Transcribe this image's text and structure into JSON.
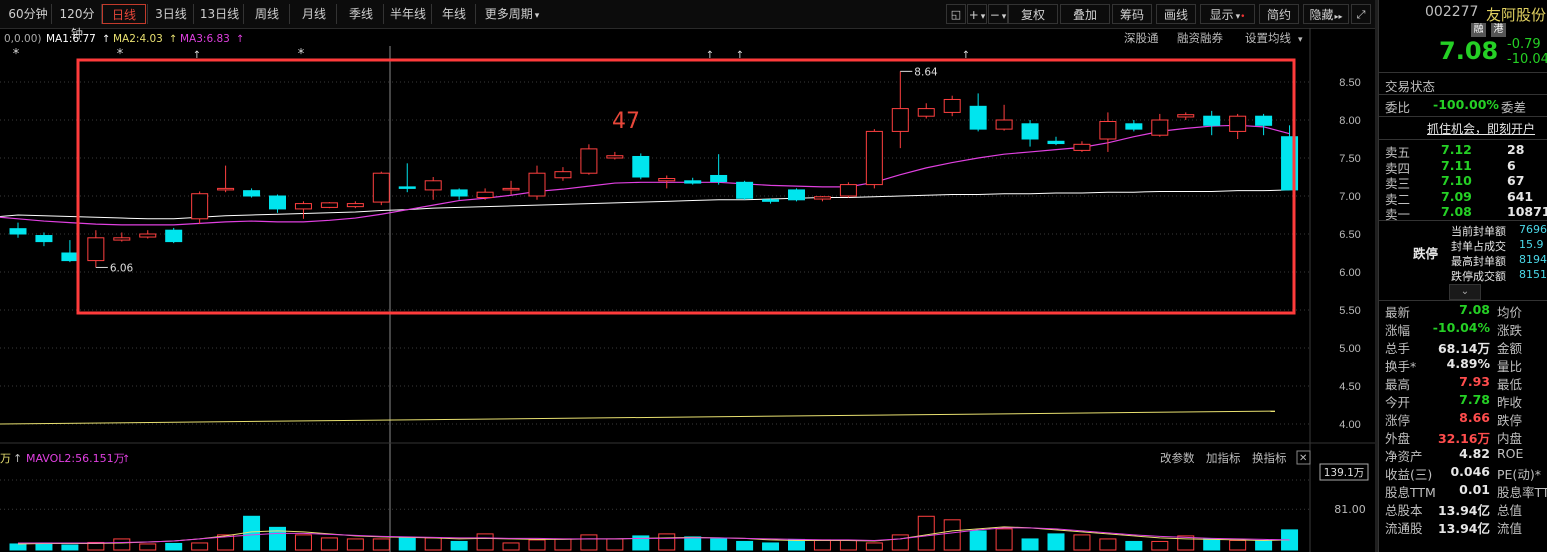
{
  "toolbar": {
    "periods": [
      "60分钟",
      "120分钟",
      "日线",
      "3日线",
      "13日线",
      "周线",
      "月线",
      "季线",
      "半年线",
      "年线",
      "更多周期"
    ],
    "selected": "日线",
    "more_arrow": "▾",
    "right_tools": [
      "+",
      "−",
      "复权",
      "叠加",
      "筹码",
      "画线",
      "显示",
      "简约",
      "隐藏"
    ],
    "right_arrows": [
      "▾",
      "▾",
      "",
      "",
      "",
      "",
      "▾",
      "",
      ""
    ],
    "lock_icon": "lock-icon",
    "expand_icon": "expand-icon",
    "hide_arrow": "▸▸"
  },
  "ma_legend": {
    "prefix": "0,0.00)",
    "ma1": "MA1:6.77",
    "ma2": "MA2:4.03",
    "ma3": "MA3:6.83",
    "ma1_color": "#ffffff",
    "ma2_color": "#e8e070",
    "ma3_color": "#e040e0"
  },
  "chart_links": [
    "深股通",
    "融资融券",
    "设置均线"
  ],
  "annotation_number": "47",
  "volume_legend": {
    "prefix": "万",
    "mavol2": "MAVOL2:56.151万",
    "links": [
      "改参数",
      "加指标",
      "换指标"
    ],
    "close": "✕"
  },
  "price_axis": [
    "8.50",
    "8.00",
    "7.50",
    "7.00",
    "6.50",
    "6.00",
    "5.50",
    "5.00",
    "4.50",
    "4.00"
  ],
  "volume_axis": [
    "139.1万",
    "81.00"
  ],
  "high_label": "8.64",
  "low_label": "6.06",
  "colors": {
    "up": "#ff4040",
    "down": "#00e5ee",
    "box": "#ff3b3b",
    "ma3": "#e040e0",
    "ma1": "#ffffff",
    "ma2": "#e8e070"
  },
  "chart_data": {
    "type": "candlestick",
    "ylim": [
      3.9,
      8.75
    ],
    "candles": [
      {
        "o": 6.57,
        "c": 6.5,
        "h": 6.65,
        "l": 6.45
      },
      {
        "o": 6.48,
        "c": 6.4,
        "h": 6.52,
        "l": 6.34
      },
      {
        "o": 6.25,
        "c": 6.15,
        "h": 6.42,
        "l": 6.13
      },
      {
        "o": 6.15,
        "c": 6.45,
        "h": 6.55,
        "l": 6.06
      },
      {
        "o": 6.42,
        "c": 6.45,
        "h": 6.52,
        "l": 6.4
      },
      {
        "o": 6.46,
        "c": 6.5,
        "h": 6.55,
        "l": 6.44
      },
      {
        "o": 6.55,
        "c": 6.4,
        "h": 6.58,
        "l": 6.38
      },
      {
        "o": 6.7,
        "c": 7.03,
        "h": 7.06,
        "l": 6.63
      },
      {
        "o": 7.08,
        "c": 7.1,
        "h": 7.4,
        "l": 7.05
      },
      {
        "o": 7.07,
        "c": 7.0,
        "h": 7.1,
        "l": 6.98
      },
      {
        "o": 7.0,
        "c": 6.83,
        "h": 7.02,
        "l": 6.78
      },
      {
        "o": 6.83,
        "c": 6.9,
        "h": 6.93,
        "l": 6.7
      },
      {
        "o": 6.85,
        "c": 6.91,
        "h": 6.92,
        "l": 6.84
      },
      {
        "o": 6.86,
        "c": 6.9,
        "h": 6.93,
        "l": 6.84
      },
      {
        "o": 6.92,
        "c": 7.3,
        "h": 7.32,
        "l": 6.88
      },
      {
        "o": 7.12,
        "c": 7.1,
        "h": 7.43,
        "l": 7.05
      },
      {
        "o": 7.08,
        "c": 7.2,
        "h": 7.25,
        "l": 6.95
      },
      {
        "o": 7.08,
        "c": 7.0,
        "h": 7.1,
        "l": 6.95
      },
      {
        "o": 6.98,
        "c": 7.05,
        "h": 7.1,
        "l": 6.95
      },
      {
        "o": 7.08,
        "c": 7.1,
        "h": 7.2,
        "l": 7.02
      },
      {
        "o": 7.0,
        "c": 7.3,
        "h": 7.4,
        "l": 6.95
      },
      {
        "o": 7.24,
        "c": 7.32,
        "h": 7.38,
        "l": 7.2
      },
      {
        "o": 7.3,
        "c": 7.62,
        "h": 7.68,
        "l": 7.28
      },
      {
        "o": 7.5,
        "c": 7.53,
        "h": 7.58,
        "l": 7.48
      },
      {
        "o": 7.52,
        "c": 7.25,
        "h": 7.56,
        "l": 7.22
      },
      {
        "o": 7.2,
        "c": 7.23,
        "h": 7.27,
        "l": 7.1
      },
      {
        "o": 7.2,
        "c": 7.17,
        "h": 7.24,
        "l": 7.15
      },
      {
        "o": 7.27,
        "c": 7.19,
        "h": 7.55,
        "l": 7.15
      },
      {
        "o": 7.18,
        "c": 6.97,
        "h": 7.2,
        "l": 6.95
      },
      {
        "o": 6.95,
        "c": 6.93,
        "h": 6.97,
        "l": 6.9
      },
      {
        "o": 7.08,
        "c": 6.95,
        "h": 7.1,
        "l": 6.93
      },
      {
        "o": 6.96,
        "c": 6.99,
        "h": 7.0,
        "l": 6.93
      },
      {
        "o": 7.0,
        "c": 7.15,
        "h": 7.18,
        "l": 6.98
      },
      {
        "o": 7.15,
        "c": 7.85,
        "h": 7.88,
        "l": 7.1
      },
      {
        "o": 7.85,
        "c": 8.15,
        "h": 8.64,
        "l": 7.63
      },
      {
        "o": 8.05,
        "c": 8.15,
        "h": 8.22,
        "l": 8.02
      },
      {
        "o": 8.1,
        "c": 8.27,
        "h": 8.32,
        "l": 8.05
      },
      {
        "o": 8.18,
        "c": 7.88,
        "h": 8.35,
        "l": 7.85
      },
      {
        "o": 7.88,
        "c": 8.0,
        "h": 8.2,
        "l": 7.86
      },
      {
        "o": 7.95,
        "c": 7.75,
        "h": 8.0,
        "l": 7.65
      },
      {
        "o": 7.72,
        "c": 7.69,
        "h": 7.78,
        "l": 7.67
      },
      {
        "o": 7.6,
        "c": 7.68,
        "h": 7.72,
        "l": 7.58
      },
      {
        "o": 7.75,
        "c": 7.98,
        "h": 8.1,
        "l": 7.58
      },
      {
        "o": 7.95,
        "c": 7.88,
        "h": 8.0,
        "l": 7.85
      },
      {
        "o": 7.8,
        "c": 8.0,
        "h": 8.08,
        "l": 7.78
      },
      {
        "o": 8.04,
        "c": 8.07,
        "h": 8.1,
        "l": 8.0
      },
      {
        "o": 8.05,
        "c": 7.93,
        "h": 8.12,
        "l": 7.8
      },
      {
        "o": 7.85,
        "c": 8.05,
        "h": 8.08,
        "l": 7.75
      },
      {
        "o": 8.05,
        "c": 7.93,
        "h": 8.08,
        "l": 7.8
      },
      {
        "o": 7.78,
        "c": 7.08,
        "h": 7.93,
        "l": 7.08
      }
    ],
    "ma3": [
      6.7,
      6.67,
      6.65,
      6.63,
      6.62,
      6.62,
      6.62,
      6.64,
      6.66,
      6.67,
      6.66,
      6.66,
      6.68,
      6.71,
      6.76,
      6.82,
      6.88,
      6.94,
      6.97,
      7.01,
      7.06,
      7.09,
      7.13,
      7.17,
      7.18,
      7.18,
      7.18,
      7.18,
      7.16,
      7.14,
      7.13,
      7.12,
      7.12,
      7.18,
      7.28,
      7.37,
      7.44,
      7.5,
      7.55,
      7.58,
      7.61,
      7.64,
      7.7,
      7.78,
      7.85,
      7.89,
      7.92,
      7.93,
      7.91,
      7.82
    ],
    "ma1": [
      6.75,
      6.74,
      6.73,
      6.72,
      6.71,
      6.7,
      6.7,
      6.72,
      6.74,
      6.75,
      6.76,
      6.77,
      6.78,
      6.79,
      6.81,
      6.82,
      6.84,
      6.85,
      6.86,
      6.87,
      6.88,
      6.89,
      6.9,
      6.91,
      6.92,
      6.93,
      6.94,
      6.95,
      6.95,
      6.96,
      6.97,
      6.98,
      6.98,
      6.99,
      7.0,
      7.01,
      7.02,
      7.02,
      7.03,
      7.03,
      7.04,
      7.04,
      7.05,
      7.05,
      7.06,
      7.06,
      7.06,
      7.07,
      7.07,
      7.08
    ],
    "ma2_range": [
      4.0,
      4.17
    ],
    "volume": [
      12,
      14,
      10,
      15,
      22,
      12,
      13,
      14,
      30,
      67,
      45,
      30,
      24,
      22,
      22,
      24,
      24,
      17,
      32,
      14,
      20,
      22,
      30,
      22,
      28,
      32,
      26,
      22,
      17,
      14,
      21,
      20,
      19,
      14,
      30,
      67,
      60,
      38,
      42,
      22,
      32,
      30,
      22,
      17,
      17,
      28,
      22,
      19,
      18,
      40
    ],
    "volume_max": 139.1,
    "volume_ma": [
      12,
      13,
      13,
      13,
      14,
      16,
      18,
      22,
      28,
      36,
      38,
      36,
      32,
      28,
      26,
      25,
      24,
      22,
      23,
      22,
      21,
      21,
      22,
      22,
      23,
      24,
      25,
      24,
      23,
      20,
      19,
      19,
      19,
      18,
      22,
      30,
      38,
      42,
      46,
      44,
      40,
      36,
      32,
      28,
      24,
      22,
      21,
      20,
      19,
      20
    ],
    "volume_ma2": [
      14,
      14,
      14,
      14,
      15,
      16,
      18,
      22,
      26,
      30,
      33,
      33,
      31,
      29,
      27,
      26,
      25,
      24,
      24,
      23,
      23,
      22,
      22,
      22,
      23,
      23,
      24,
      24,
      23,
      22,
      21,
      20,
      20,
      19,
      22,
      28,
      34,
      40,
      44,
      44,
      42,
      38,
      34,
      30,
      27,
      25,
      23,
      22,
      21,
      20
    ]
  },
  "stock": {
    "code": "002277",
    "name": "友阿股份",
    "badges": [
      "融",
      "港"
    ],
    "price": "7.08",
    "change": "-0.79",
    "change_pct": "-10.04",
    "section_trade": "交易状态",
    "weibi_label": "委比",
    "weibi_value": "-100.00%",
    "weicha_label": "委差",
    "promo": "抓住机会，即刻开户",
    "sell_rows": [
      {
        "label": "卖五",
        "price": "7.12",
        "vol": "28"
      },
      {
        "label": "卖四",
        "price": "7.11",
        "vol": "6"
      },
      {
        "label": "卖三",
        "price": "7.10",
        "vol": "67"
      },
      {
        "label": "卖二",
        "price": "7.09",
        "vol": "641"
      },
      {
        "label": "卖一",
        "price": "7.08",
        "vol": "10871"
      }
    ],
    "limit_label": "跌停",
    "limit_rows": [
      {
        "label": "当前封单额",
        "value": "7696"
      },
      {
        "label": "封单占成交",
        "value": "15.9"
      },
      {
        "label": "最高封单额",
        "value": "8194"
      },
      {
        "label": "跌停成交额",
        "value": "8151"
      }
    ],
    "collapse_icon": "chevron-down-icon",
    "stats": [
      {
        "k1": "最新",
        "v1": "7.08",
        "c1": "green",
        "k2": "均价"
      },
      {
        "k1": "涨幅",
        "v1": "-10.04%",
        "c1": "green",
        "k2": "涨跌"
      },
      {
        "k1": "总手",
        "v1": "68.14万",
        "c1": "white",
        "k2": "金额"
      },
      {
        "k1": "换手*",
        "v1": "4.89%",
        "c1": "white",
        "k2": "量比"
      },
      {
        "k1": "最高",
        "v1": "7.93",
        "c1": "red",
        "k2": "最低"
      },
      {
        "k1": "今开",
        "v1": "7.78",
        "c1": "green",
        "k2": "昨收"
      },
      {
        "k1": "涨停",
        "v1": "8.66",
        "c1": "red",
        "k2": "跌停"
      },
      {
        "k1": "外盘",
        "v1": "32.16万",
        "c1": "red",
        "k2": "内盘"
      },
      {
        "k1": "净资产",
        "v1": "4.82",
        "c1": "white",
        "k2": "ROE"
      },
      {
        "k1": "收益(三)",
        "v1": "0.046",
        "c1": "white",
        "k2": "PE(动)*"
      },
      {
        "k1": "股息TTM",
        "v1": "0.01",
        "c1": "white",
        "k2": "股息率TT"
      },
      {
        "k1": "总股本",
        "v1": "13.94亿",
        "c1": "white",
        "k2": "总值"
      },
      {
        "k1": "流通股",
        "v1": "13.94亿",
        "c1": "white",
        "k2": "流值"
      }
    ]
  }
}
